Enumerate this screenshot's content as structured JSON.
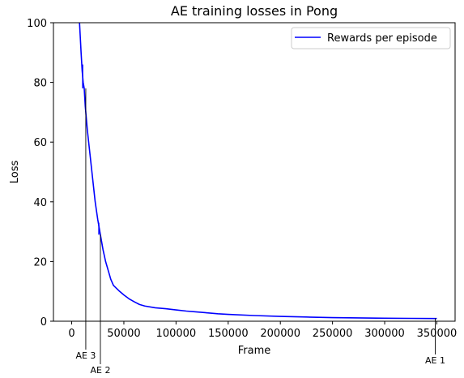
{
  "chart_data": {
    "type": "line",
    "title": "AE training losses in Pong",
    "xlabel": "Frame",
    "ylabel": "Loss",
    "xlim": [
      -17500,
      367500
    ],
    "ylim": [
      0,
      100
    ],
    "xticks": [
      0,
      50000,
      100000,
      150000,
      200000,
      250000,
      300000,
      350000
    ],
    "xtick_labels": [
      "0",
      "50000",
      "100000",
      "150000",
      "200000",
      "250000",
      "300000",
      "350000"
    ],
    "yticks": [
      0,
      20,
      40,
      60,
      80,
      100
    ],
    "ytick_labels": [
      "0",
      "20",
      "40",
      "60",
      "80",
      "100"
    ],
    "grid": false,
    "legend_position": "top-right",
    "series": [
      {
        "name": "Rewards per episode",
        "color": "#0000ff",
        "x": [
          5000,
          7500,
          9000,
          10000,
          11000,
          12000,
          13000,
          15000,
          17500,
          20000,
          22500,
          25000,
          27000,
          28000,
          30000,
          32500,
          35000,
          37500,
          40000,
          45000,
          50000,
          55000,
          60000,
          65000,
          70000,
          80000,
          90000,
          100000,
          110000,
          120000,
          130000,
          140000,
          150000,
          175000,
          200000,
          225000,
          250000,
          275000,
          300000,
          325000,
          350000
        ],
        "y": [
          120,
          100,
          90,
          84,
          80,
          78,
          72,
          64,
          56,
          48,
          40,
          34,
          30,
          28,
          24,
          20,
          17,
          14,
          12,
          10.3,
          8.8,
          7.5,
          6.5,
          5.6,
          5.1,
          4.5,
          4.2,
          3.8,
          3.4,
          3.1,
          2.8,
          2.5,
          2.3,
          1.9,
          1.6,
          1.4,
          1.2,
          1.1,
          1.0,
          0.95,
          0.9
        ]
      }
    ],
    "spikes": [
      {
        "x": 10500,
        "y_low": 78,
        "y_high": 86
      },
      {
        "x": 26000,
        "y_low": 29,
        "y_high": 33
      }
    ],
    "annotations": [
      {
        "text": "AE 3",
        "x": 13500,
        "y": 78
      },
      {
        "text": "AE 2",
        "x": 27500,
        "y": 29
      },
      {
        "text": "AE 1",
        "x": 348500,
        "y": 1
      }
    ]
  }
}
